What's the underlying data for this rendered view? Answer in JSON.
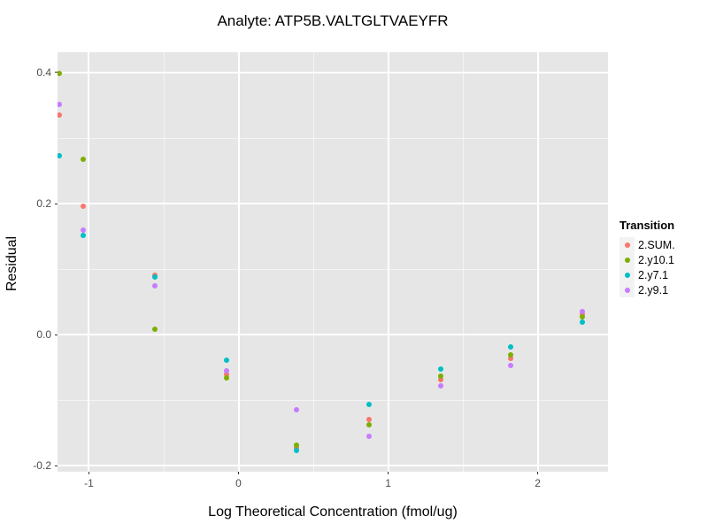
{
  "chart_data": {
    "type": "scatter",
    "title": "Analyte: ATP5B.VALTGLTVAEYFR",
    "xlabel": "Log Theoretical Concentration (fmol/ug)",
    "ylabel": "Residual",
    "legend_title": "Transition",
    "legend_position": "right",
    "grid": true,
    "xlim": [
      -1.21,
      2.47
    ],
    "ylim": [
      -0.209,
      0.431
    ],
    "x_ticks": [
      -1,
      0,
      1,
      2
    ],
    "x_tick_labels": [
      "-1",
      "0",
      "1",
      "2"
    ],
    "x_minor_ticks": [
      -0.5,
      0.5,
      1.5,
      2.5
    ],
    "y_ticks": [
      0.4,
      0.2,
      0.0,
      -0.2
    ],
    "y_tick_labels": [
      "0.4",
      "0.2",
      "0.0",
      "-0.2"
    ],
    "y_minor_ticks": [
      0.3,
      0.1,
      -0.1
    ],
    "x": [
      -1.2,
      -1.04,
      -0.56,
      -0.08,
      0.39,
      0.87,
      1.35,
      1.82,
      2.3
    ],
    "series": [
      {
        "name": "2.SUM.",
        "color": "#F8766D",
        "values": [
          0.335,
          0.196,
          0.091,
          -0.06,
          -0.172,
          -0.129,
          -0.068,
          -0.036,
          0.031
        ]
      },
      {
        "name": "2.y10.1",
        "color": "#7CAE00",
        "values": [
          0.398,
          0.267,
          0.008,
          -0.066,
          -0.169,
          -0.138,
          -0.063,
          -0.031,
          0.027
        ]
      },
      {
        "name": "2.y7.1",
        "color": "#00BFC4",
        "values": [
          0.273,
          0.151,
          0.088,
          -0.039,
          -0.177,
          -0.107,
          -0.053,
          -0.019,
          0.019
        ]
      },
      {
        "name": "2.y9.1",
        "color": "#C77CFF",
        "values": [
          0.351,
          0.16,
          0.074,
          -0.055,
          -0.115,
          -0.155,
          -0.078,
          -0.047,
          0.036
        ]
      }
    ]
  },
  "colors": {
    "panel_background": "#E6E6E6",
    "grid_major": "#FFFFFF",
    "tick_mark": "#333333",
    "tick_text": "#4D4D4D",
    "title_text": "#000000",
    "legend_key_background": "#F2F2F2"
  }
}
